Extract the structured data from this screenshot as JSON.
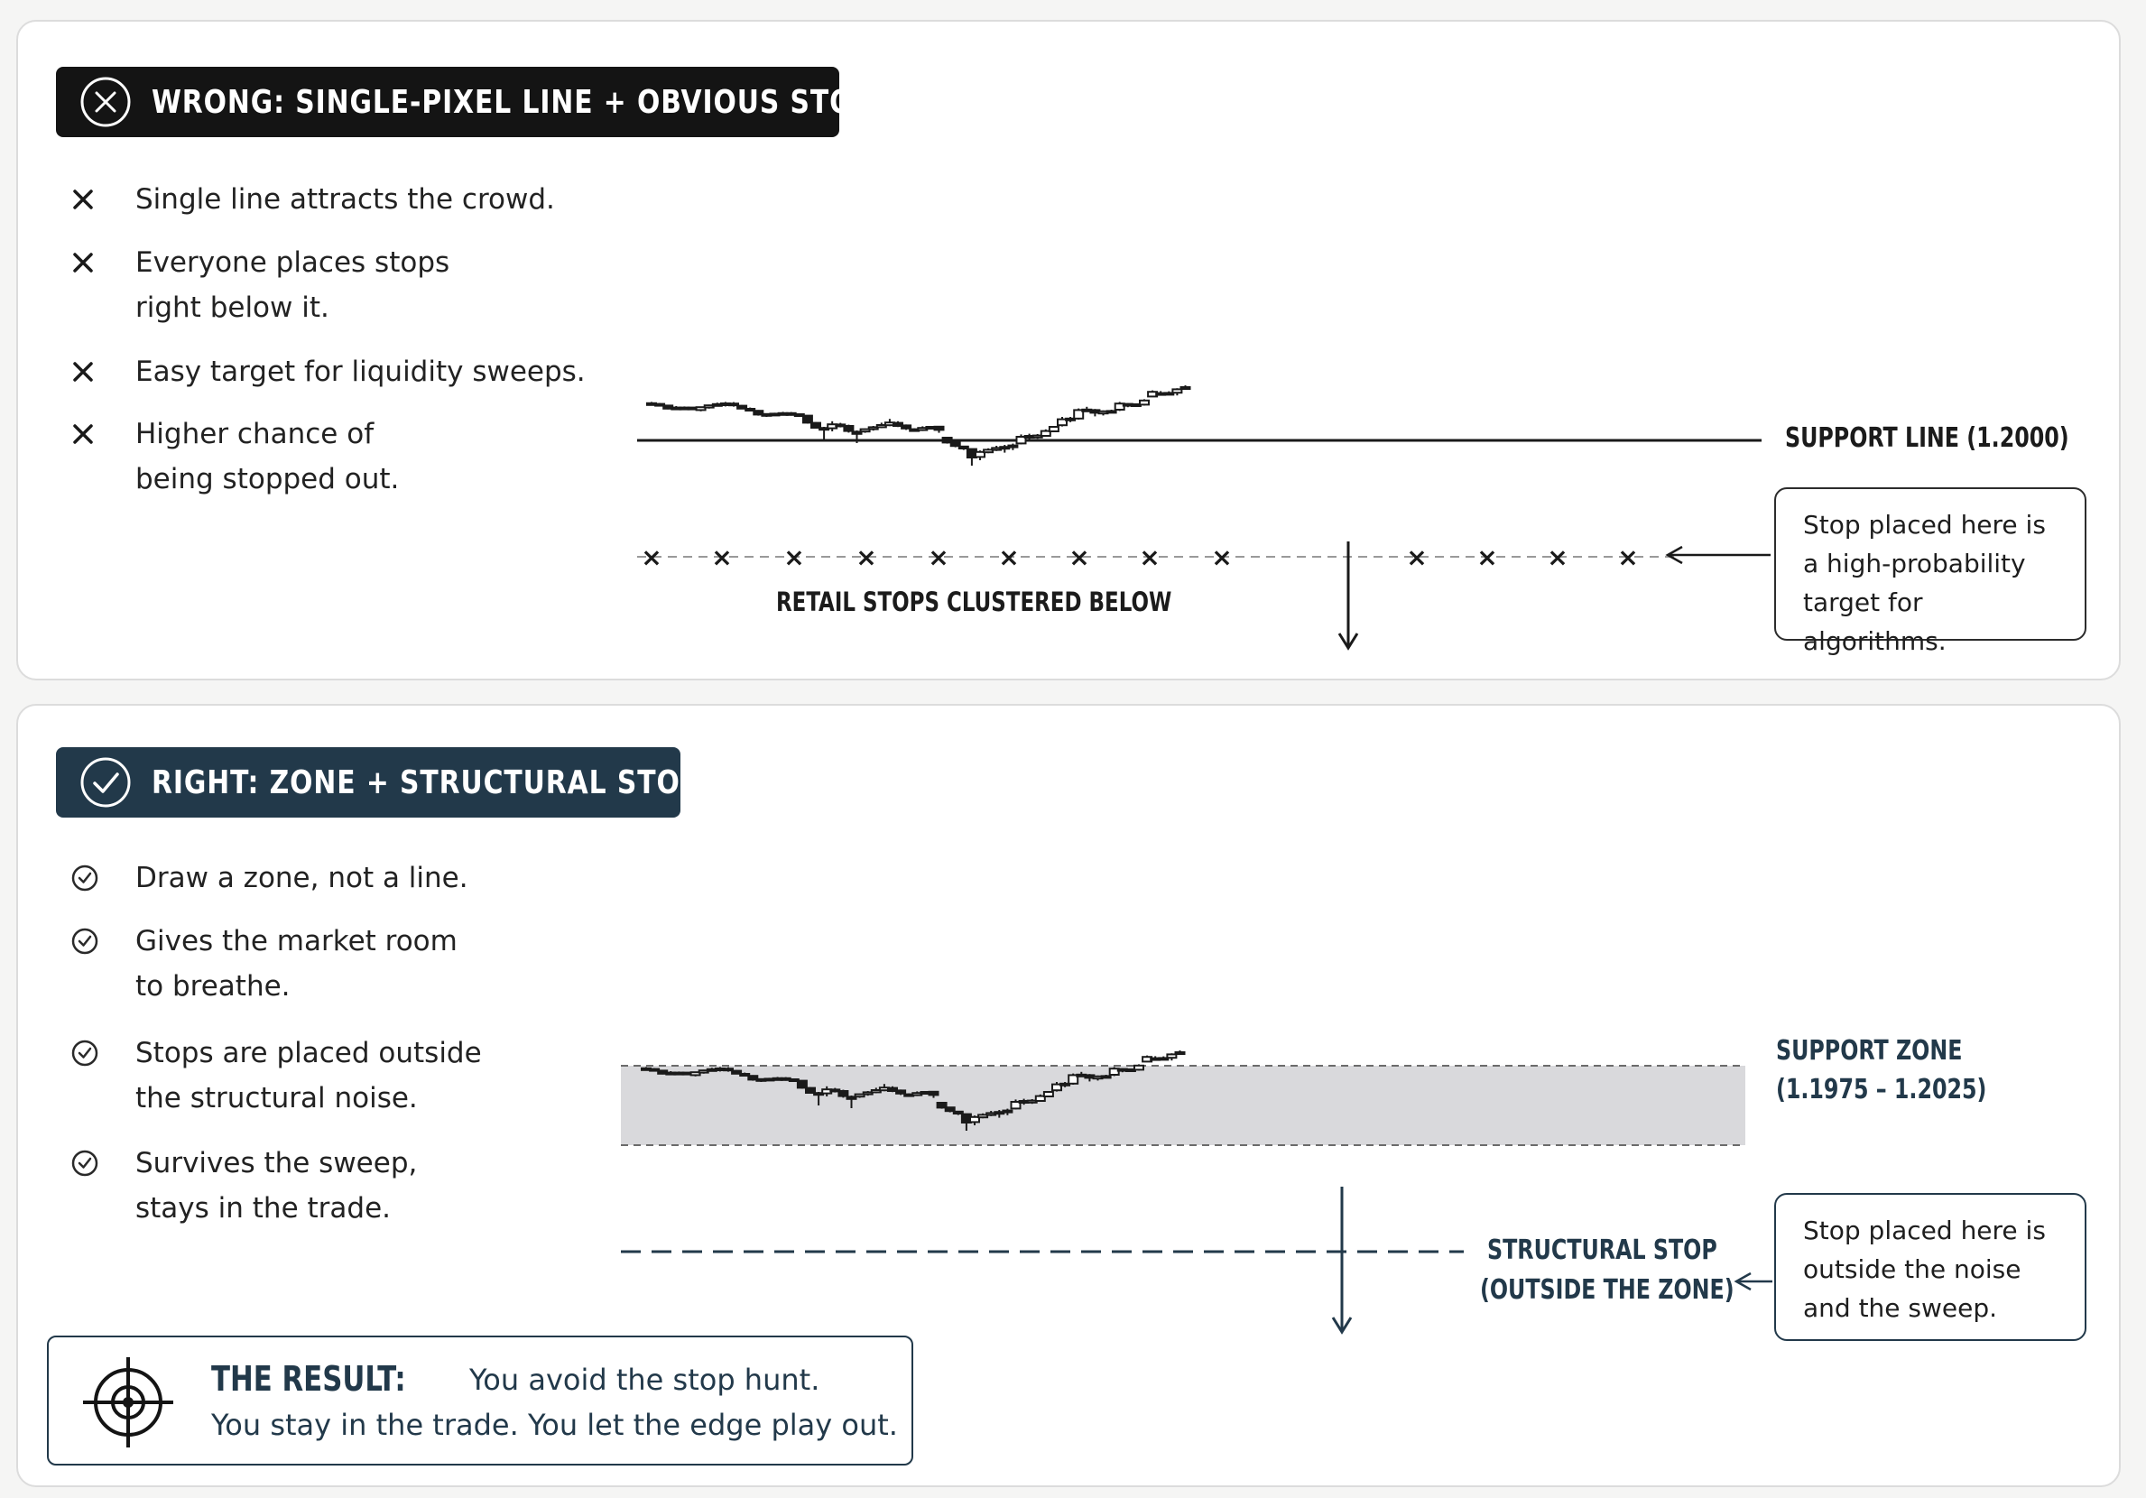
{
  "wrong": {
    "banner_title": "WRONG: SINGLE-PIXEL LINE + OBVIOUS STOP",
    "icon": "x-circle-icon",
    "items": [
      "Single line attracts the crowd.",
      "Everyone places stops right below it.",
      "Easy target for liquidity sweeps.",
      "Higher chance of being stopped out."
    ],
    "support_label": "SUPPORT LINE (1.2000)",
    "stops_label": "RETAIL STOPS CLUSTERED BELOW",
    "callout": "Stop placed here is a high-probability target for algorithms.",
    "stop_marker": "×"
  },
  "right": {
    "banner_title": "RIGHT: ZONE + STRUCTURAL STOP",
    "icon": "check-circle-icon",
    "items": [
      "Draw a zone, not a line.",
      "Gives the market room to breathe.",
      "Stops are placed outside the structural noise.",
      "Survives the sweep, stays in the trade."
    ],
    "zone_label_line1": "SUPPORT ZONE",
    "zone_label_line2": "(1.1975 – 1.2025)",
    "stop_label_line1": "STRUCTURAL STOP",
    "stop_label_line2": "(OUTSIDE THE ZONE)",
    "callout": "Stop placed here is outside the noise and the sweep."
  },
  "result": {
    "heading": "THE RESULT:",
    "line1": "You avoid the stop hunt.",
    "line2": "You stay in the trade. You let the edge play out.",
    "icon": "target-icon"
  },
  "colors": {
    "dark": "#141414",
    "navy": "#22394a",
    "zone": "#d9d9dc"
  },
  "candles": [
    {
      "o": 1.2206,
      "c": 1.2203,
      "h": 1.2213,
      "l": 1.2194
    },
    {
      "o": 1.2202,
      "c": 1.2194,
      "h": 1.2207,
      "l": 1.2189
    },
    {
      "o": 1.2193,
      "c": 1.2176,
      "h": 1.2197,
      "l": 1.2172
    },
    {
      "o": 1.2177,
      "c": 1.2182,
      "h": 1.219,
      "l": 1.217
    },
    {
      "o": 1.2182,
      "c": 1.2181,
      "h": 1.2188,
      "l": 1.2175
    },
    {
      "o": 1.2182,
      "c": 1.2172,
      "h": 1.2185,
      "l": 1.2168
    },
    {
      "o": 1.2168,
      "c": 1.2184,
      "h": 1.2186,
      "l": 1.2161
    },
    {
      "o": 1.2182,
      "c": 1.2194,
      "h": 1.2198,
      "l": 1.2176
    },
    {
      "o": 1.2193,
      "c": 1.2201,
      "h": 1.2209,
      "l": 1.2188
    },
    {
      "o": 1.2196,
      "c": 1.2205,
      "h": 1.2213,
      "l": 1.2188
    },
    {
      "o": 1.2204,
      "c": 1.2194,
      "h": 1.2212,
      "l": 1.2187
    },
    {
      "o": 1.2192,
      "c": 1.2176,
      "h": 1.2196,
      "l": 1.2173
    },
    {
      "o": 1.2175,
      "c": 1.2166,
      "h": 1.2182,
      "l": 1.216
    },
    {
      "o": 1.2164,
      "c": 1.2143,
      "h": 1.2168,
      "l": 1.2137
    },
    {
      "o": 1.2139,
      "c": 1.2146,
      "h": 1.2149,
      "l": 1.213
    },
    {
      "o": 1.2145,
      "c": 1.2148,
      "h": 1.2153,
      "l": 1.2138
    },
    {
      "o": 1.2147,
      "c": 1.2151,
      "h": 1.2158,
      "l": 1.2143
    },
    {
      "o": 1.2151,
      "c": 1.2142,
      "h": 1.2157,
      "l": 1.2137
    },
    {
      "o": 1.2145,
      "c": 1.2137,
      "h": 1.215,
      "l": 1.2134
    },
    {
      "o": 1.2137,
      "c": 1.2098,
      "h": 1.214,
      "l": 1.2093
    },
    {
      "o": 1.2097,
      "c": 1.207,
      "h": 1.2101,
      "l": 1.2065
    },
    {
      "o": 1.2069,
      "c": 1.2062,
      "h": 1.2075,
      "l": 1.2
    },
    {
      "o": 1.2067,
      "c": 1.2089,
      "h": 1.2106,
      "l": 1.205
    },
    {
      "o": 1.2088,
      "c": 1.2078,
      "h": 1.2097,
      "l": 1.2072
    },
    {
      "o": 1.208,
      "c": 1.2052,
      "h": 1.2087,
      "l": 1.2043
    },
    {
      "o": 1.2048,
      "c": 1.2036,
      "h": 1.2055,
      "l": 1.1985
    },
    {
      "o": 1.2049,
      "c": 1.2062,
      "h": 1.2066,
      "l": 1.2042
    },
    {
      "o": 1.2062,
      "c": 1.2073,
      "h": 1.208,
      "l": 1.2054
    },
    {
      "o": 1.2073,
      "c": 1.2085,
      "h": 1.2098,
      "l": 1.2068
    },
    {
      "o": 1.2084,
      "c": 1.2099,
      "h": 1.2119,
      "l": 1.2079
    },
    {
      "o": 1.2097,
      "c": 1.208,
      "h": 1.2106,
      "l": 1.2074
    },
    {
      "o": 1.2083,
      "c": 1.2066,
      "h": 1.2088,
      "l": 1.2058
    },
    {
      "o": 1.2062,
      "c": 1.2056,
      "h": 1.2067,
      "l": 1.2051
    },
    {
      "o": 1.2057,
      "c": 1.2069,
      "h": 1.2078,
      "l": 1.2052
    },
    {
      "o": 1.2071,
      "c": 1.2075,
      "h": 1.208,
      "l": 1.2061
    },
    {
      "o": 1.2076,
      "c": 1.2058,
      "h": 1.208,
      "l": 1.2042
    },
    {
      "o": 1.2015,
      "c": 1.1988,
      "h": 1.202,
      "l": 1.1982
    },
    {
      "o": 1.1989,
      "c": 1.1969,
      "h": 1.1992,
      "l": 1.1962
    },
    {
      "o": 1.1966,
      "c": 1.1955,
      "h": 1.197,
      "l": 1.1947
    },
    {
      "o": 1.1952,
      "c": 1.1905,
      "h": 1.1955,
      "l": 1.186
    },
    {
      "o": 1.1908,
      "c": 1.1936,
      "h": 1.1944,
      "l": 1.189
    },
    {
      "o": 1.1934,
      "c": 1.1948,
      "h": 1.1956,
      "l": 1.1929
    },
    {
      "o": 1.1947,
      "c": 1.1958,
      "h": 1.197,
      "l": 1.1941
    },
    {
      "o": 1.1954,
      "c": 1.1964,
      "h": 1.1975,
      "l": 1.1932
    },
    {
      "o": 1.1963,
      "c": 1.1972,
      "h": 1.1982,
      "l": 1.1946
    },
    {
      "o": 1.1983,
      "c": 1.202,
      "h": 1.2033,
      "l": 1.1978
    },
    {
      "o": 1.2019,
      "c": 1.2025,
      "h": 1.2037,
      "l": 1.2004
    },
    {
      "o": 1.2016,
      "c": 1.2027,
      "h": 1.2035,
      "l": 1.2009
    },
    {
      "o": 1.2025,
      "c": 1.2052,
      "h": 1.2061,
      "l": 1.2021
    },
    {
      "o": 1.205,
      "c": 1.2075,
      "h": 1.2079,
      "l": 1.2045
    },
    {
      "o": 1.2084,
      "c": 1.2117,
      "h": 1.213,
      "l": 1.2077
    },
    {
      "o": 1.2121,
      "c": 1.2116,
      "h": 1.213,
      "l": 1.2101
    },
    {
      "o": 1.2121,
      "c": 1.2168,
      "h": 1.2177,
      "l": 1.2115
    },
    {
      "o": 1.2171,
      "c": 1.2166,
      "h": 1.2186,
      "l": 1.2158
    },
    {
      "o": 1.2168,
      "c": 1.2153,
      "h": 1.2174,
      "l": 1.2133
    },
    {
      "o": 1.2149,
      "c": 1.2161,
      "h": 1.2166,
      "l": 1.2138
    },
    {
      "o": 1.216,
      "c": 1.2163,
      "h": 1.217,
      "l": 1.2152
    },
    {
      "o": 1.217,
      "c": 1.2204,
      "h": 1.2213,
      "l": 1.2163
    },
    {
      "o": 1.2202,
      "c": 1.2196,
      "h": 1.2206,
      "l": 1.2184
    },
    {
      "o": 1.22,
      "c": 1.2197,
      "h": 1.2205,
      "l": 1.2191
    },
    {
      "o": 1.2198,
      "c": 1.2221,
      "h": 1.2228,
      "l": 1.2193
    },
    {
      "o": 1.2243,
      "c": 1.2269,
      "h": 1.2277,
      "l": 1.224
    },
    {
      "o": 1.2262,
      "c": 1.2255,
      "h": 1.2273,
      "l": 1.2252
    },
    {
      "o": 1.226,
      "c": 1.2263,
      "h": 1.2272,
      "l": 1.2251
    },
    {
      "o": 1.2264,
      "c": 1.2283,
      "h": 1.2289,
      "l": 1.2249
    },
    {
      "o": 1.2288,
      "c": 1.2295,
      "h": 1.2305,
      "l": 1.2283
    }
  ]
}
